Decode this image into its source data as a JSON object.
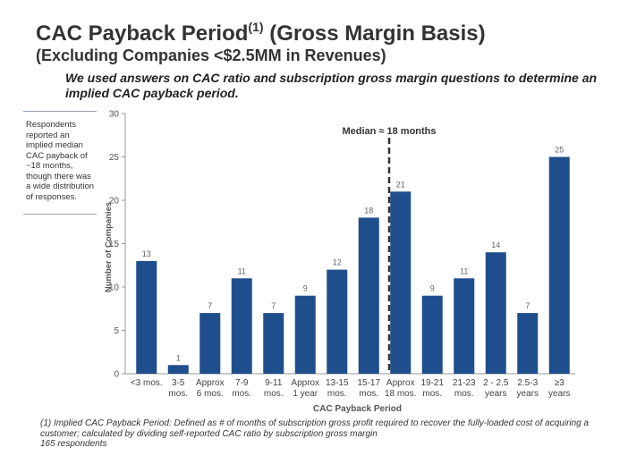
{
  "header": {
    "title": "CAC Payback Period",
    "title_sup": "(1)",
    "title_suffix": "(Gross Margin Basis)",
    "subtitle": "(Excluding Companies <$2.5MM in Revenues)",
    "lead": "We used answers on CAC ratio and subscription gross margin questions to determine an implied CAC payback period."
  },
  "callout": {
    "text": "Respondents reported an implied median CAC payback of ~18 months, though there was a wide distribution of responses."
  },
  "chart_data": {
    "type": "bar",
    "title": "",
    "xlabel": "CAC Payback Period",
    "ylabel": "Number of Companies",
    "ylim": [
      0,
      30
    ],
    "yticks": [
      0,
      5,
      10,
      15,
      20,
      25,
      30
    ],
    "categories": [
      [
        "<3 mos."
      ],
      [
        "3-5",
        "mos."
      ],
      [
        "Approx",
        "6 mos."
      ],
      [
        "7-9",
        "mos."
      ],
      [
        "9-11",
        "mos."
      ],
      [
        "Approx",
        "1 year"
      ],
      [
        "13-15",
        "mos."
      ],
      [
        "15-17",
        "mos."
      ],
      [
        "Approx",
        "18 mos."
      ],
      [
        "19-21",
        "mos."
      ],
      [
        "21-23",
        "mos."
      ],
      [
        "2 - 2.5",
        "years"
      ],
      [
        "2.5-3",
        "years"
      ],
      [
        "≥3",
        "years"
      ]
    ],
    "values": [
      13,
      1,
      7,
      11,
      7,
      9,
      12,
      18,
      21,
      9,
      11,
      14,
      7,
      25
    ],
    "bar_color": "#1f4e8c",
    "annotation": {
      "text": "Median ≈ 18 months",
      "category_index": 8
    }
  },
  "footnote": {
    "text": "(1) Implied CAC Payback Period: Defined as # of months of subscription gross profit required to recover the fully-loaded cost of acquiring a customer; calculated by dividing self-reported CAC ratio by subscription gross margin",
    "respondents": "165 respondents"
  }
}
